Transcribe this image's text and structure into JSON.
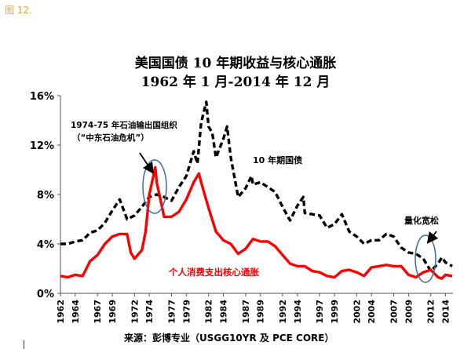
{
  "figure_label": "图 12.",
  "source": "来源：彭博专业（USGG10YR 及 PCE CORE）",
  "colors": {
    "treasury": "#000000",
    "pce": "#ff0000",
    "ellipse": "#3a6aa8",
    "figure_label": "#e8a33d"
  },
  "chart_data": {
    "type": "line",
    "title": [
      "美国国债 10 年期收益与核心通胀",
      "1962 年 1 月-2014 年 12 月"
    ],
    "xlabel": "",
    "ylabel": "",
    "xlim": [
      1962,
      2015
    ],
    "ylim": [
      0,
      16
    ],
    "x_ticks": [
      "1962",
      "1964",
      "1967",
      "1969",
      "1972",
      "1974",
      "1977",
      "1979",
      "1982",
      "1984",
      "1987",
      "1989",
      "1992",
      "1994",
      "1997",
      "1999",
      "2002",
      "2004",
      "2007",
      "2009",
      "2012",
      "2014"
    ],
    "y_ticks": [
      "0%",
      "4%",
      "8%",
      "12%",
      "16%"
    ],
    "grid": false,
    "series": [
      {
        "name": "10 年期国债",
        "style": "dashed",
        "points": [
          [
            1962,
            4.0
          ],
          [
            1963,
            4.0
          ],
          [
            1964,
            4.2
          ],
          [
            1965,
            4.3
          ],
          [
            1966,
            4.9
          ],
          [
            1967,
            5.1
          ],
          [
            1968,
            5.7
          ],
          [
            1969,
            6.7
          ],
          [
            1970,
            7.6
          ],
          [
            1971,
            6.0
          ],
          [
            1972,
            6.3
          ],
          [
            1973,
            7.0
          ],
          [
            1974,
            7.8
          ],
          [
            1975,
            8.0
          ],
          [
            1976,
            7.8
          ],
          [
            1977,
            7.5
          ],
          [
            1978,
            8.6
          ],
          [
            1979,
            9.5
          ],
          [
            1980,
            11.5
          ],
          [
            1980.5,
            10.5
          ],
          [
            1981,
            13.8
          ],
          [
            1981.7,
            15.5
          ],
          [
            1982,
            13.5
          ],
          [
            1982.5,
            13.0
          ],
          [
            1983,
            11.0
          ],
          [
            1984,
            12.5
          ],
          [
            1984.5,
            13.5
          ],
          [
            1985,
            11.0
          ],
          [
            1986,
            7.8
          ],
          [
            1987,
            8.5
          ],
          [
            1987.8,
            9.5
          ],
          [
            1988,
            8.8
          ],
          [
            1989,
            9.0
          ],
          [
            1990,
            8.6
          ],
          [
            1991,
            8.2
          ],
          [
            1992,
            7.0
          ],
          [
            1993,
            5.9
          ],
          [
            1994,
            7.1
          ],
          [
            1994.8,
            7.8
          ],
          [
            1995,
            6.5
          ],
          [
            1996,
            6.4
          ],
          [
            1997,
            6.3
          ],
          [
            1998,
            5.3
          ],
          [
            1999,
            5.6
          ],
          [
            2000,
            6.4
          ],
          [
            2001,
            5.0
          ],
          [
            2002,
            4.6
          ],
          [
            2003,
            4.0
          ],
          [
            2004,
            4.3
          ],
          [
            2005,
            4.3
          ],
          [
            2006,
            4.8
          ],
          [
            2007,
            4.6
          ],
          [
            2008,
            3.7
          ],
          [
            2009,
            3.3
          ],
          [
            2010,
            3.2
          ],
          [
            2011,
            2.8
          ],
          [
            2012,
            1.8
          ],
          [
            2013,
            2.4
          ],
          [
            2013.5,
            2.9
          ],
          [
            2014,
            2.5
          ],
          [
            2014.9,
            2.2
          ]
        ]
      },
      {
        "name": "个人消费支出核心通胀",
        "style": "solid",
        "points": [
          [
            1962,
            1.4
          ],
          [
            1963,
            1.3
          ],
          [
            1964,
            1.5
          ],
          [
            1965,
            1.4
          ],
          [
            1966,
            2.6
          ],
          [
            1967,
            3.1
          ],
          [
            1968,
            4.0
          ],
          [
            1969,
            4.6
          ],
          [
            1970,
            4.8
          ],
          [
            1971,
            4.8
          ],
          [
            1971.5,
            3.3
          ],
          [
            1972,
            2.8
          ],
          [
            1973,
            3.5
          ],
          [
            1973.5,
            5.0
          ],
          [
            1974,
            8.0
          ],
          [
            1974.8,
            10.2
          ],
          [
            1975,
            9.0
          ],
          [
            1976,
            6.2
          ],
          [
            1977,
            6.2
          ],
          [
            1978,
            6.6
          ],
          [
            1979,
            7.6
          ],
          [
            1980,
            9.0
          ],
          [
            1980.7,
            9.7
          ],
          [
            1981,
            9.0
          ],
          [
            1982,
            6.9
          ],
          [
            1983,
            5.0
          ],
          [
            1984,
            4.3
          ],
          [
            1985,
            4.0
          ],
          [
            1986,
            3.2
          ],
          [
            1987,
            3.6
          ],
          [
            1988,
            4.4
          ],
          [
            1989,
            4.2
          ],
          [
            1990,
            4.2
          ],
          [
            1991,
            3.8
          ],
          [
            1992,
            3.1
          ],
          [
            1993,
            2.4
          ],
          [
            1994,
            2.2
          ],
          [
            1995,
            2.2
          ],
          [
            1996,
            1.8
          ],
          [
            1997,
            1.7
          ],
          [
            1998,
            1.4
          ],
          [
            1999,
            1.3
          ],
          [
            2000,
            1.8
          ],
          [
            2001,
            1.9
          ],
          [
            2002,
            1.7
          ],
          [
            2003,
            1.4
          ],
          [
            2004,
            2.1
          ],
          [
            2005,
            2.2
          ],
          [
            2006,
            2.3
          ],
          [
            2007,
            2.2
          ],
          [
            2008,
            2.2
          ],
          [
            2009,
            1.5
          ],
          [
            2010,
            1.3
          ],
          [
            2011,
            1.7
          ],
          [
            2012,
            1.9
          ],
          [
            2013,
            1.3
          ],
          [
            2013.5,
            1.2
          ],
          [
            2014,
            1.5
          ],
          [
            2014.9,
            1.4
          ]
        ]
      }
    ],
    "annotations": [
      {
        "text": [
          "1974-75 年石油输出国组织",
          "（“中东石油危机”）"
        ]
      },
      {
        "text": [
          "10 年期国债"
        ]
      },
      {
        "text": [
          "量化宽松"
        ]
      },
      {
        "text": [
          "个人消费支出核心通胀"
        ]
      }
    ]
  }
}
